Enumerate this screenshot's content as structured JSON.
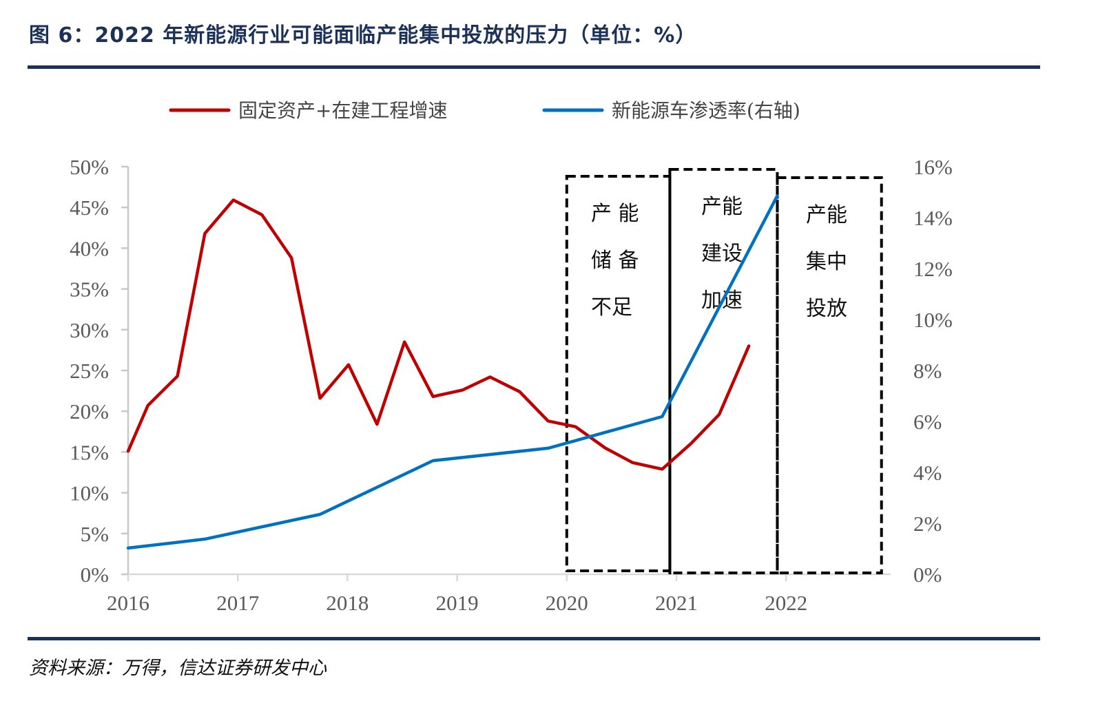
{
  "figure": {
    "title": "图 6：2022 年新能源行业可能面临产能集中投放的压力（单位：%）",
    "source": "资料来源：万得，信达证券研发中心"
  },
  "colors": {
    "title": "#1b3158",
    "series_red": "#c00000",
    "series_blue": "#0070c0",
    "axis": "#c8c8c8",
    "tick_text": "#595959"
  },
  "chart_data": {
    "type": "line",
    "title": "2022 年新能源行业可能面临产能集中投放的压力（单位：%）",
    "xlabel": "",
    "ylabel": "",
    "x_ticks": [
      "2016",
      "2017",
      "2018",
      "2019",
      "2020",
      "2021",
      "2022"
    ],
    "xlim": [
      2016,
      2022.96
    ],
    "y_left": {
      "ticks": [
        "0%",
        "5%",
        "10%",
        "15%",
        "20%",
        "25%",
        "30%",
        "35%",
        "40%",
        "45%",
        "50%"
      ],
      "ylim": [
        0,
        50
      ]
    },
    "y_right": {
      "ticks": [
        "0%",
        "2%",
        "4%",
        "6%",
        "8%",
        "10%",
        "12%",
        "14%",
        "16%"
      ],
      "ylim": [
        0,
        16
      ]
    },
    "legend_position": "top",
    "grid": false,
    "series": [
      {
        "name": "固定资产+在建工程增速",
        "axis": "left",
        "color": "#c00000",
        "x": [
          2016.0,
          2016.18,
          2016.45,
          2016.7,
          2016.96,
          2017.22,
          2017.49,
          2017.75,
          2018.01,
          2018.27,
          2018.52,
          2018.78,
          2019.05,
          2019.3,
          2019.57,
          2019.83,
          2020.08,
          2020.35,
          2020.6,
          2020.87,
          2021.13,
          2021.39,
          2021.66
        ],
        "values": [
          15.1,
          20.7,
          24.3,
          41.8,
          45.9,
          44.1,
          38.8,
          21.6,
          25.7,
          18.4,
          28.5,
          21.8,
          22.6,
          24.2,
          22.4,
          18.8,
          18.1,
          15.5,
          13.7,
          12.9,
          16.0,
          19.6,
          28.0
        ]
      },
      {
        "name": "新能源车渗透率(右轴)",
        "axis": "right",
        "color": "#0070c0",
        "x": [
          2016.0,
          2016.7,
          2017.75,
          2018.78,
          2019.83,
          2020.87,
          2021.92
        ],
        "values": [
          1.03,
          1.38,
          2.35,
          4.46,
          4.95,
          6.19,
          14.86
        ]
      }
    ],
    "annotations": [
      {
        "style": "dashed",
        "x_range": [
          2020.0,
          2020.94
        ],
        "lines": [
          "产  能",
          "储  备",
          "不足"
        ]
      },
      {
        "style": "dashed",
        "x_range": [
          2020.94,
          2021.92
        ],
        "lines": [
          "产能",
          "建设",
          "加速"
        ]
      },
      {
        "style": "dashed",
        "x_range": [
          2021.92,
          2022.87
        ],
        "lines": [
          "产能",
          "集中",
          "投放"
        ]
      }
    ]
  }
}
